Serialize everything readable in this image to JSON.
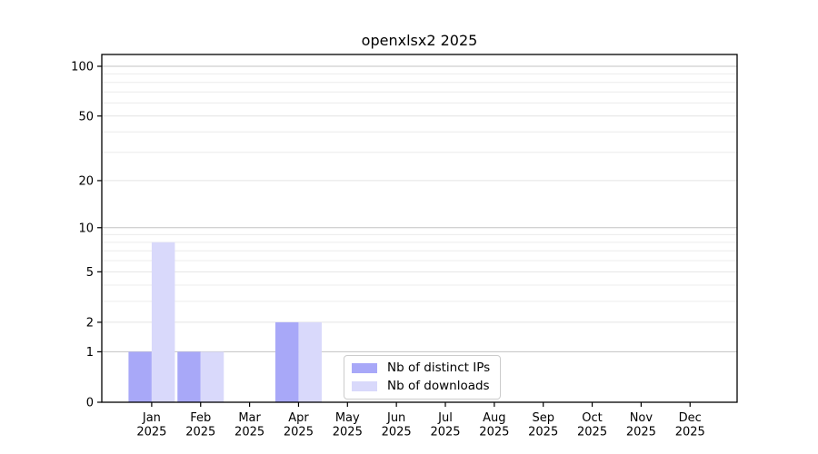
{
  "chart_data": {
    "type": "bar",
    "title": "openxlsx2 2025",
    "xlabel": "",
    "ylabel": "",
    "year_label": "2025",
    "categories": [
      "Jan",
      "Feb",
      "Mar",
      "Apr",
      "May",
      "Jun",
      "Jul",
      "Aug",
      "Sep",
      "Oct",
      "Nov",
      "Dec"
    ],
    "series": [
      {
        "name": "Nb of distinct IPs",
        "color": "#a8a8f8",
        "values": [
          1,
          1,
          0,
          2,
          0,
          0,
          0,
          0,
          0,
          0,
          0,
          0
        ]
      },
      {
        "name": "Nb of downloads",
        "color": "#d9d9fb",
        "values": [
          8,
          1,
          0,
          2,
          0,
          0,
          0,
          0,
          0,
          0,
          0,
          0
        ]
      }
    ],
    "yscale": "log1p",
    "ylim": [
      0,
      118
    ],
    "yticks": [
      0,
      1,
      2,
      5,
      10,
      20,
      50,
      100
    ],
    "minor_yticks": [
      3,
      4,
      6,
      7,
      8,
      9,
      30,
      40,
      60,
      70,
      80,
      90
    ],
    "grid": "horizontal",
    "legend_position": "lower-center",
    "colors": {
      "axis": "#000000",
      "tick_label": "#000000",
      "major_grid": "#c3c3c3",
      "mid_grid": "#e4e4e4",
      "minor_grid": "#ececec",
      "background": "#ffffff"
    }
  }
}
